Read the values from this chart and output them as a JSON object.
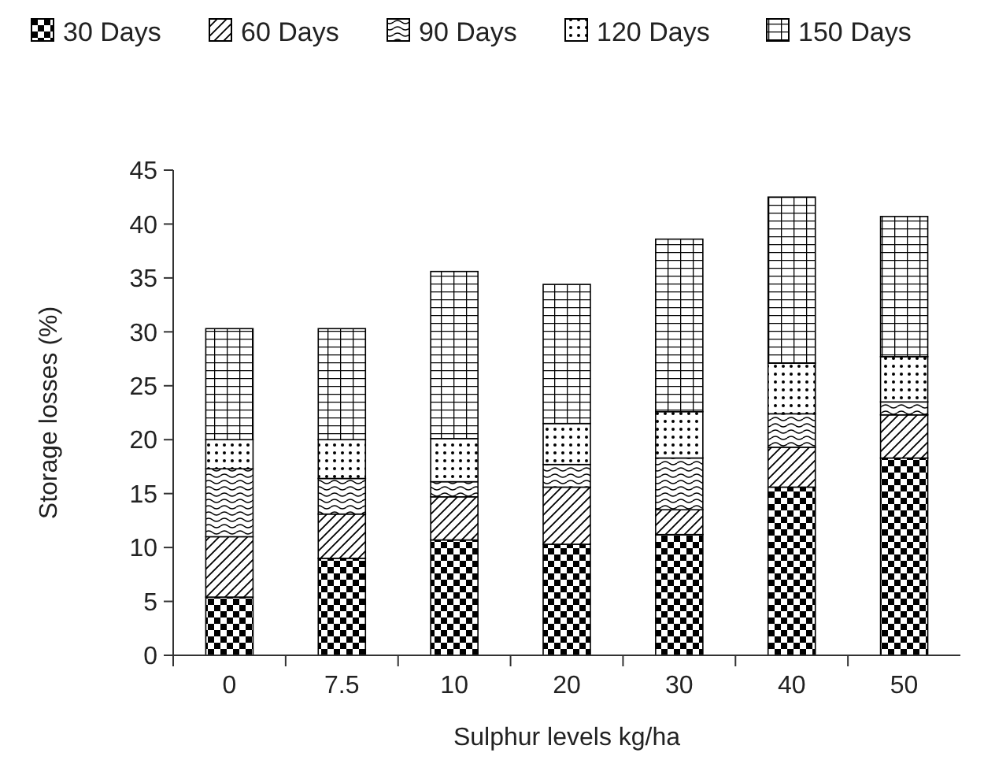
{
  "chart_data": {
    "type": "bar",
    "stacked": true,
    "xlabel": "Sulphur levels kg/ha",
    "ylabel": "Storage losses (%)",
    "categories": [
      "0",
      "7.5",
      "10",
      "20",
      "30",
      "40",
      "50"
    ],
    "ylim": [
      0,
      45
    ],
    "yticks": [
      0,
      5,
      10,
      15,
      20,
      25,
      30,
      35,
      40,
      45
    ],
    "grid": false,
    "legend": "top",
    "series": [
      {
        "name": "30 Days",
        "color": "#000000",
        "values": [
          5.4,
          9.0,
          10.7,
          10.3,
          11.2,
          15.6,
          18.3
        ]
      },
      {
        "name": "60 Days",
        "color": "#000000",
        "values": [
          5.6,
          4.1,
          4.0,
          5.3,
          2.3,
          3.7,
          4.0
        ]
      },
      {
        "name": "90 Days",
        "color": "#000000",
        "values": [
          6.3,
          3.3,
          1.4,
          2.1,
          4.8,
          3.1,
          1.2
        ]
      },
      {
        "name": "120 Days",
        "color": "#000000",
        "values": [
          2.7,
          3.6,
          4.0,
          3.8,
          4.3,
          4.7,
          4.2
        ]
      },
      {
        "name": "150 Days",
        "color": "#000000",
        "values": [
          10.3,
          10.3,
          15.5,
          12.9,
          16.0,
          15.4,
          13.0
        ]
      }
    ]
  }
}
